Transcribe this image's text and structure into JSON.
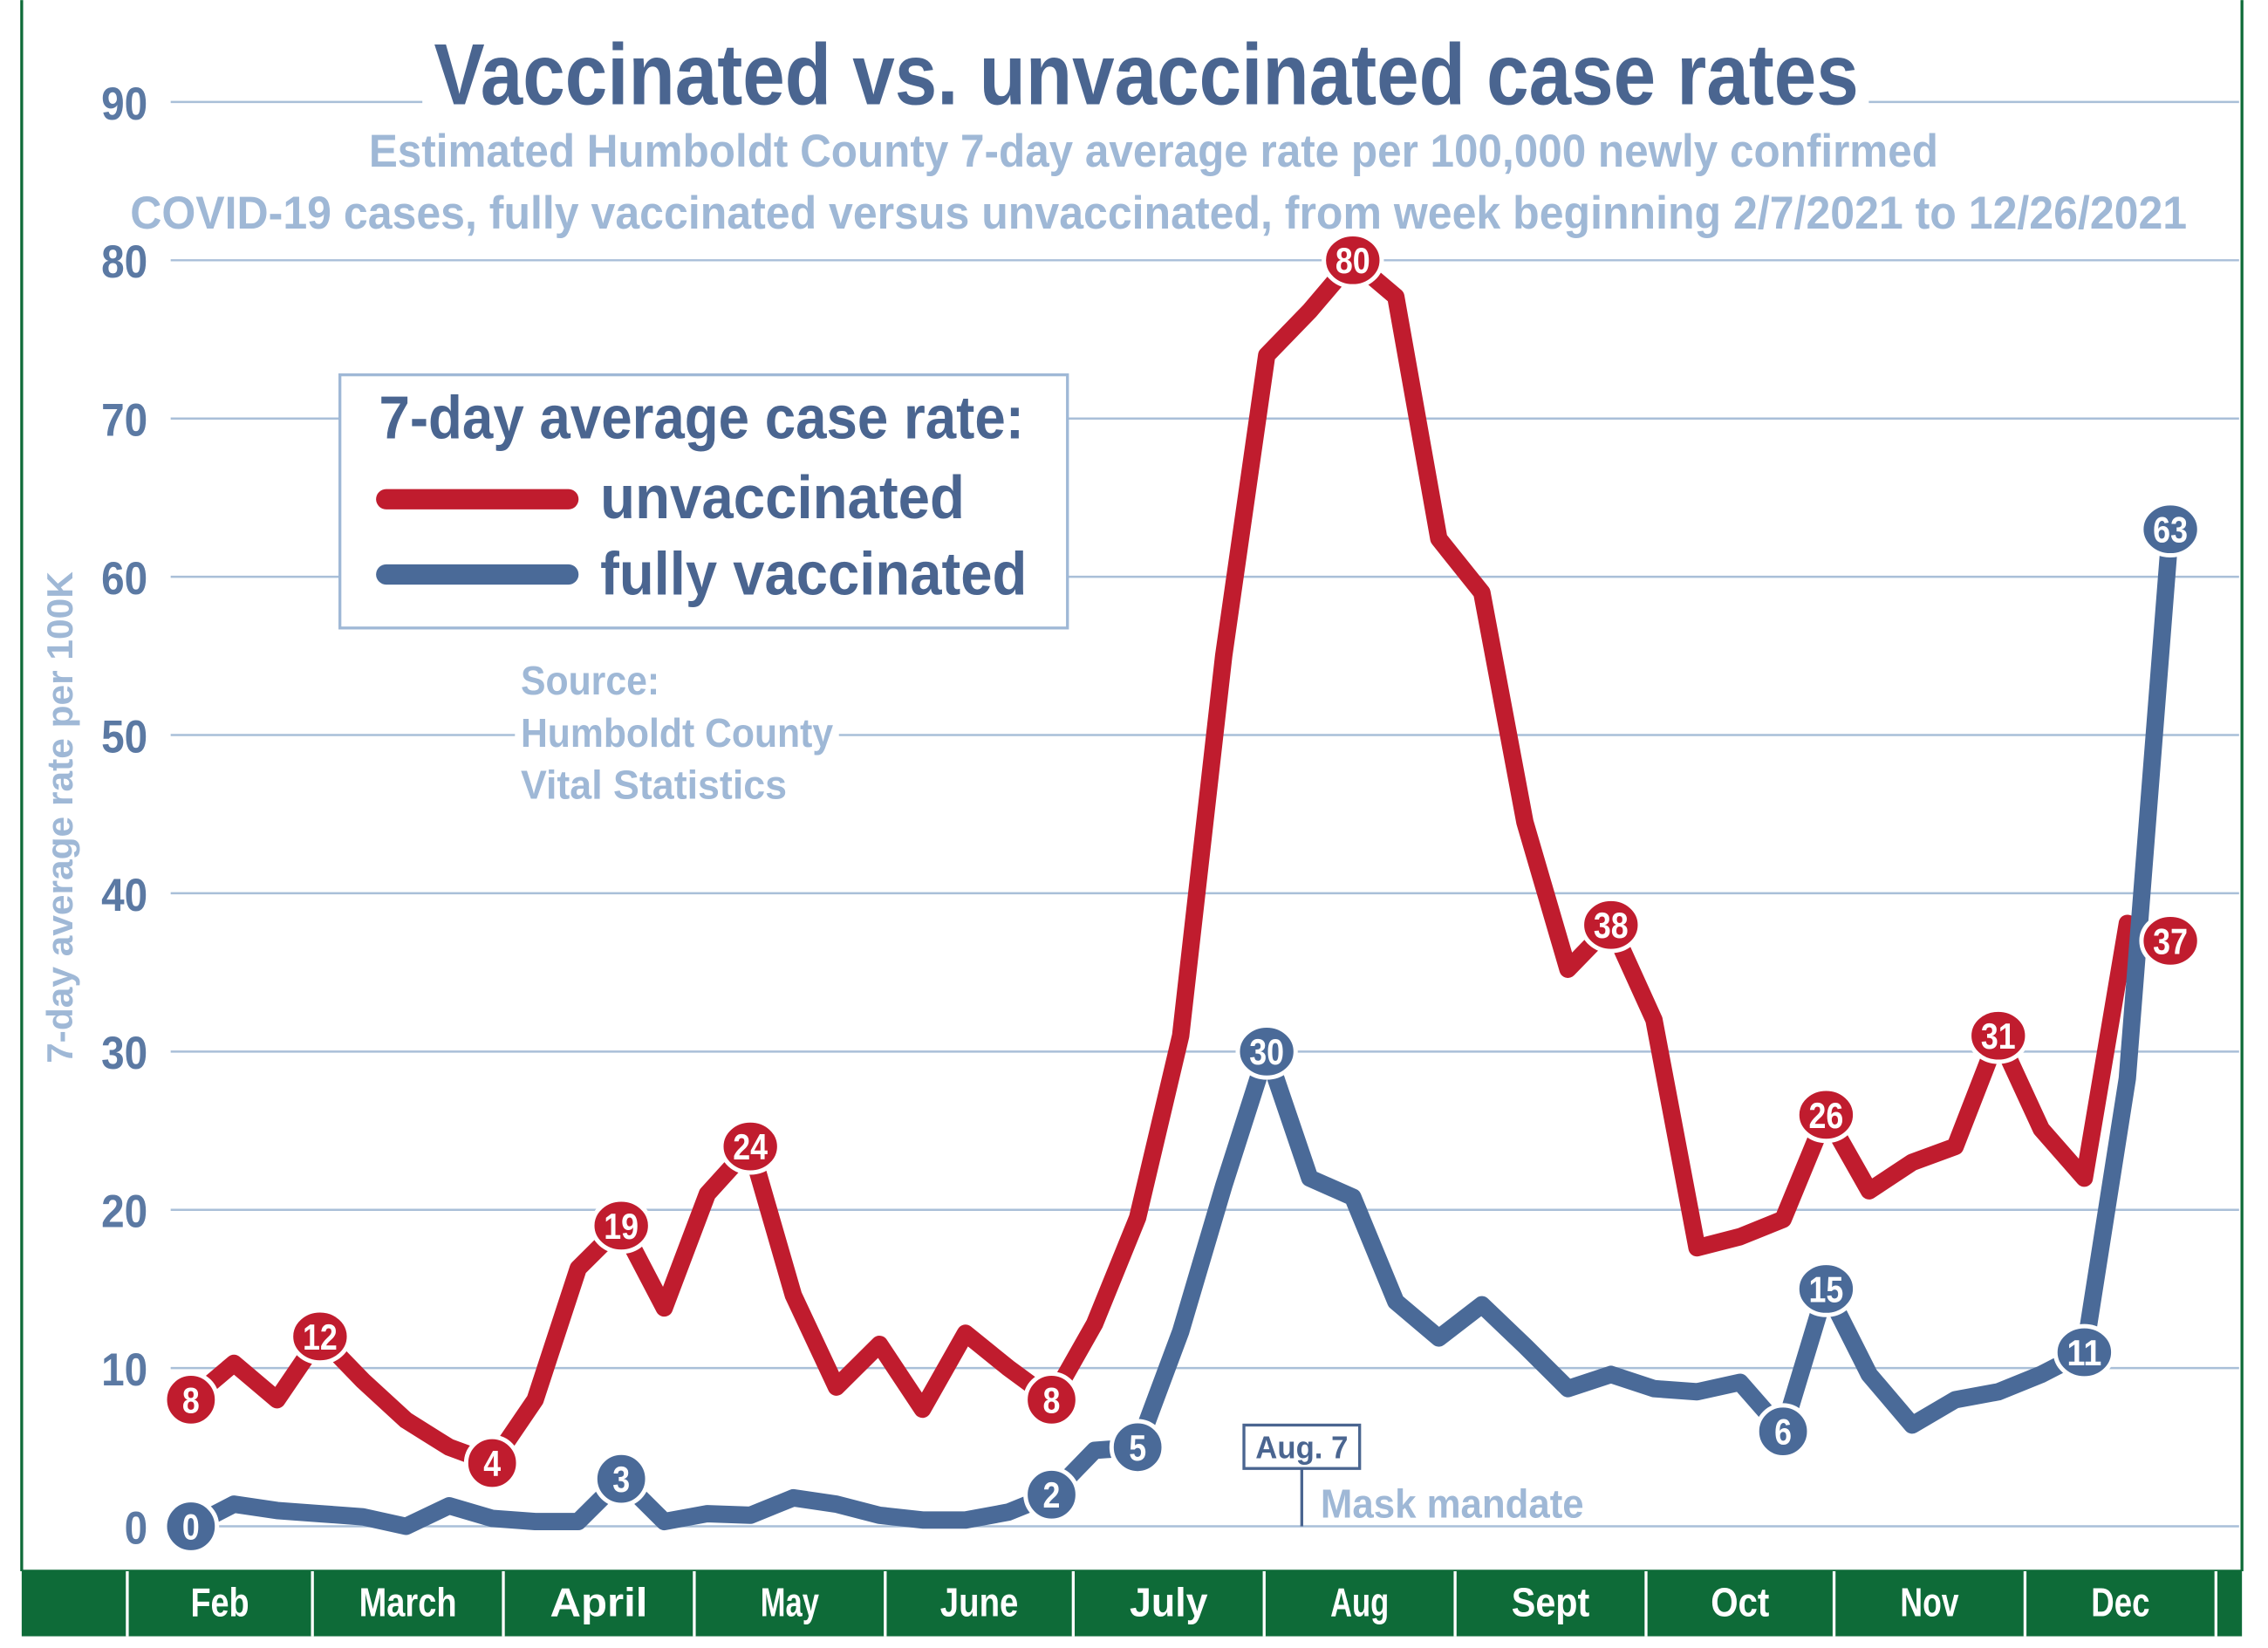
{
  "chart_data": {
    "type": "line",
    "title": "Vaccinated vs. unvaccinated case rates",
    "subtitle_lines": [
      "Estimated Humboldt County 7-day average rate per 100,000 newly confirmed",
      "COVID-19 cases,  fully vaccinated versus unvaccinated, from week beginning 2/7/2021 to 12/26/2021"
    ],
    "ylabel": "7-day average rate per 100K",
    "ylim": [
      0,
      90
    ],
    "yticks": [
      "0",
      "10",
      "20",
      "30",
      "40",
      "50",
      "60",
      "70",
      "80",
      "90"
    ],
    "grid": true,
    "months": [
      "Feb",
      "March",
      "April",
      "May",
      "June",
      "July",
      "Aug",
      "Sept",
      "Oct",
      "Nov",
      "Dec"
    ],
    "x": [
      "2/7/2021",
      "2/14/2021",
      "2/21/2021",
      "2/28/2021",
      "3/7/2021",
      "3/14/2021",
      "3/21/2021",
      "3/28/2021",
      "4/4/2021",
      "4/11/2021",
      "4/18/2021",
      "4/25/2021",
      "5/2/2021",
      "5/9/2021",
      "5/16/2021",
      "5/23/2021",
      "5/30/2021",
      "6/6/2021",
      "6/13/2021",
      "6/20/2021",
      "6/27/2021",
      "7/4/2021",
      "7/11/2021",
      "7/18/2021",
      "7/25/2021",
      "8/1/2021",
      "8/8/2021",
      "8/15/2021",
      "8/22/2021",
      "8/29/2021",
      "9/5/2021",
      "9/12/2021",
      "9/19/2021",
      "9/26/2021",
      "10/3/2021",
      "10/10/2021",
      "10/17/2021",
      "10/24/2021",
      "10/31/2021",
      "11/7/2021",
      "11/14/2021",
      "11/21/2021",
      "11/28/2021",
      "12/5/2021",
      "12/12/2021",
      "12/19/2021",
      "12/26/2021"
    ],
    "series": [
      {
        "name": "unvaccinated",
        "color": "#c01c2e",
        "values": [
          8,
          10.3,
          8,
          12,
          9.2,
          6.7,
          5,
          4,
          8,
          16.3,
          19,
          13.8,
          21,
          24,
          14.6,
          8.8,
          11.5,
          7.4,
          12.2,
          10,
          8,
          12.8,
          19.5,
          31,
          55,
          74,
          76.8,
          80,
          77.7,
          62.4,
          59,
          44.5,
          35.2,
          38,
          32,
          17.6,
          18.3,
          19.4,
          26,
          21.2,
          23,
          24,
          31,
          25.1,
          22,
          38.1,
          37
        ],
        "labels": [
          {
            "index": 0,
            "text": "8"
          },
          {
            "index": 3,
            "text": "12"
          },
          {
            "index": 7,
            "text": "4"
          },
          {
            "index": 10,
            "text": "19"
          },
          {
            "index": 13,
            "text": "24"
          },
          {
            "index": 20,
            "text": "8"
          },
          {
            "index": 27,
            "text": "80"
          },
          {
            "index": 33,
            "text": "38"
          },
          {
            "index": 38,
            "text": "26"
          },
          {
            "index": 42,
            "text": "31"
          },
          {
            "index": 46,
            "text": "37"
          }
        ]
      },
      {
        "name": "fully vaccinated",
        "color": "#4a6a98",
        "values": [
          0,
          1.4,
          1,
          0.8,
          0.6,
          0,
          1.3,
          0.5,
          0.3,
          0.3,
          3,
          0.3,
          0.8,
          0.7,
          1.8,
          1.4,
          0.7,
          0.4,
          0.4,
          0.9,
          2,
          4.8,
          5,
          12.3,
          21.5,
          30,
          22,
          20.8,
          14.2,
          11.9,
          14,
          11.4,
          8.7,
          9.6,
          8.7,
          8.5,
          9.1,
          6,
          15,
          9.6,
          6.4,
          8,
          8.5,
          9.6,
          11,
          28.3,
          63
        ],
        "labels": [
          {
            "index": 0,
            "text": "0"
          },
          {
            "index": 10,
            "text": "3"
          },
          {
            "index": 20,
            "text": "2"
          },
          {
            "index": 22,
            "text": "5"
          },
          {
            "index": 25,
            "text": "30"
          },
          {
            "index": 37,
            "text": "6"
          },
          {
            "index": 38,
            "text": "15"
          },
          {
            "index": 44,
            "text": "11"
          },
          {
            "index": 46,
            "text": "63"
          }
        ]
      }
    ],
    "legend": {
      "title": "7-day average case rate:",
      "placement": "upper-left",
      "entries": [
        "unvaccinated",
        "fully vaccinated"
      ]
    },
    "source_lines": [
      "Source:",
      "Humboldt County",
      "Vital Statistics"
    ],
    "annotation": {
      "date_label": "Aug. 7",
      "text": "Mask mandate"
    }
  },
  "colors": {
    "title": "#4a6590",
    "subtitle": "#9fb8d6",
    "grid": "#a9bfd8",
    "axis_band": "#0e6b38",
    "tick": "#5b79a3"
  }
}
